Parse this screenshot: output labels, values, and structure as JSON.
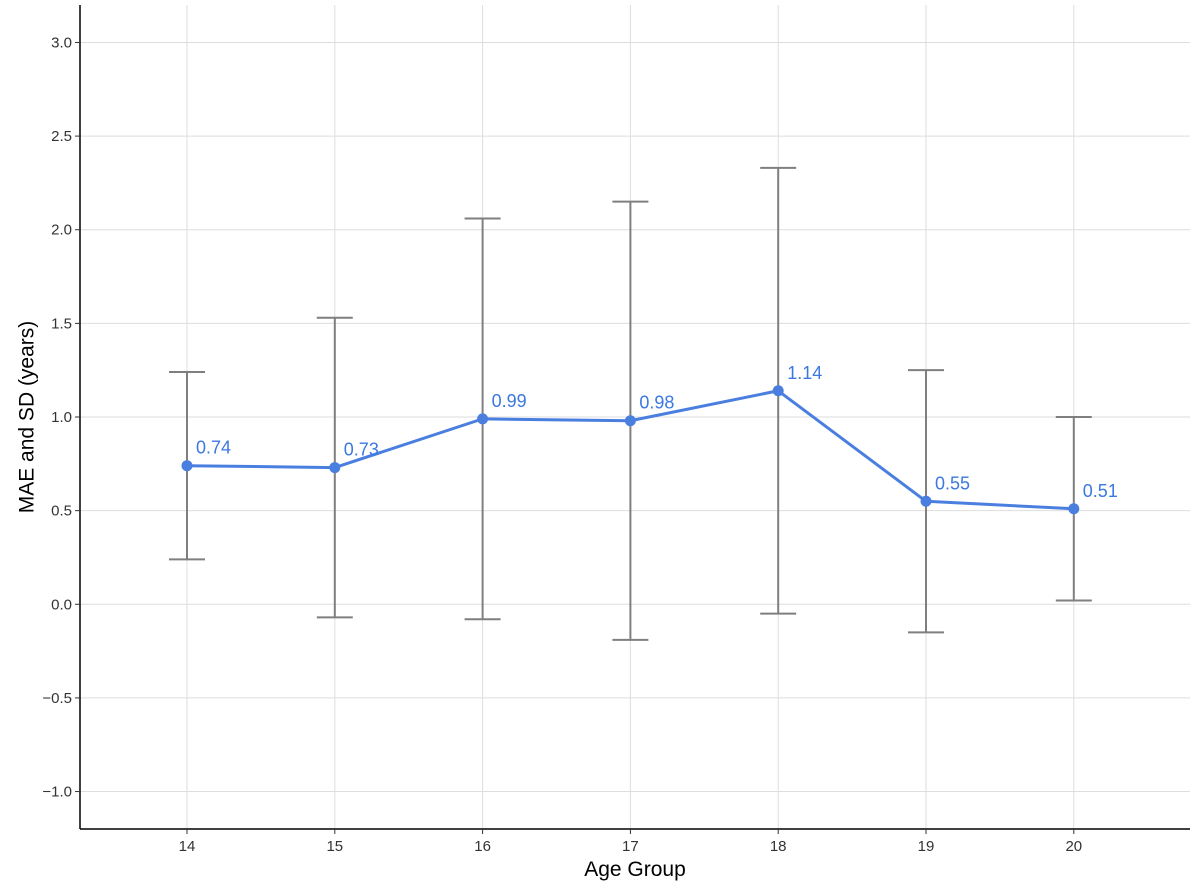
{
  "chart_data": {
    "type": "line",
    "title": "",
    "xlabel": "Age Group",
    "ylabel": "MAE and SD (years)",
    "categories": [
      "14",
      "15",
      "16",
      "17",
      "18",
      "19",
      "20"
    ],
    "series": [
      {
        "values": [
          0.74,
          0.73,
          0.99,
          0.98,
          1.14,
          0.55,
          0.51
        ],
        "value_labels": [
          "0.74",
          "0.73",
          "0.99",
          "0.98",
          "1.14",
          "0.55",
          "0.51"
        ],
        "error_bars": [
          {
            "low": 0.24,
            "high": 1.24
          },
          {
            "low": -0.07,
            "high": 1.53
          },
          {
            "low": -0.08,
            "high": 2.06
          },
          {
            "low": -0.19,
            "high": 2.15
          },
          {
            "low": -0.05,
            "high": 2.33
          },
          {
            "low": -0.15,
            "high": 1.25
          },
          {
            "low": 0.02,
            "high": 1.0
          }
        ]
      }
    ],
    "ylim": [
      -1.2,
      3.2
    ],
    "yticks": [
      -1.0,
      -0.5,
      0.0,
      0.5,
      1.0,
      1.5,
      2.0,
      2.5,
      3.0
    ],
    "ytick_labels": [
      "−1.0",
      "−0.5",
      "0.0",
      "0.5",
      "1.0",
      "1.5",
      "2.0",
      "2.5",
      "3.0"
    ],
    "grid": true,
    "legend": "none",
    "colors": {
      "line": "#4a7fe0",
      "point": "#4a7fe0",
      "label": "#3b78e0",
      "error_bar": "#7f7f7f",
      "grid": "#dedede",
      "axis": "#000000"
    }
  }
}
